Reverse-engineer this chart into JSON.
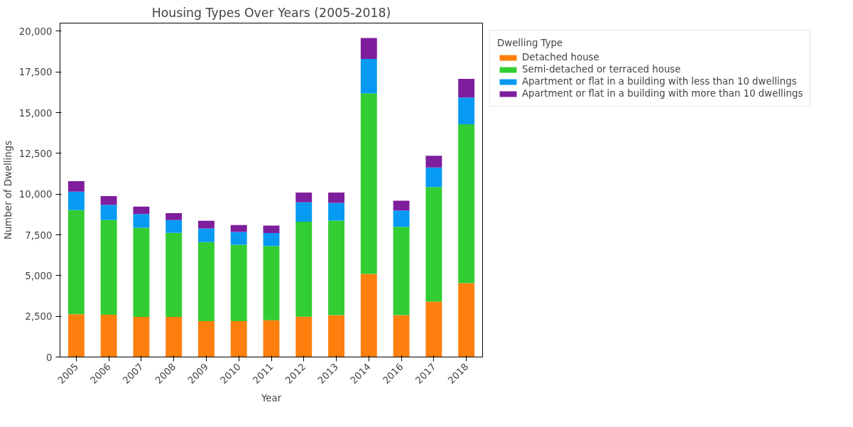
{
  "chart_data": {
    "type": "bar",
    "title": "Housing Types Over Years (2005-2018)",
    "xlabel": "Year",
    "ylabel": "Number of Dwellings",
    "legend_title": "Dwelling Type",
    "categories": [
      "2005",
      "2006",
      "2007",
      "2008",
      "2009",
      "2010",
      "2011",
      "2012",
      "2013",
      "2014",
      "2016",
      "2017",
      "2018"
    ],
    "stacked": true,
    "series": [
      {
        "name": "Detached house",
        "color": "#ff7f0e",
        "values": [
          2630,
          2590,
          2460,
          2460,
          2200,
          2200,
          2260,
          2480,
          2570,
          5100,
          2570,
          3400,
          4540
        ]
      },
      {
        "name": "Semi-detached or terraced house",
        "color": "#32cd32",
        "values": [
          6390,
          5820,
          5480,
          5160,
          4860,
          4690,
          4560,
          5830,
          5800,
          11080,
          5420,
          7040,
          9740
        ]
      },
      {
        "name": "Apartment or flat in a building with less than 10 dwellings",
        "color": "#069af3",
        "values": [
          1130,
          940,
          840,
          790,
          840,
          790,
          790,
          1190,
          1090,
          2120,
          1010,
          1190,
          1650
        ]
      },
      {
        "name": "Apartment or flat in a building with more than 10 dwellings",
        "color": "#7e1e9c",
        "values": [
          650,
          530,
          460,
          420,
          460,
          420,
          460,
          600,
          640,
          1280,
          600,
          720,
          1150
        ]
      }
    ],
    "ylim": [
      0,
      20500
    ],
    "yticks": [
      {
        "value": 0,
        "label": "0"
      },
      {
        "value": 2500,
        "label": "2,500"
      },
      {
        "value": 5000,
        "label": "5,000"
      },
      {
        "value": 7500,
        "label": "7,500"
      },
      {
        "value": 10000,
        "label": "10,000"
      },
      {
        "value": 12500,
        "label": "12,500"
      },
      {
        "value": 15000,
        "label": "15,000"
      },
      {
        "value": 17500,
        "label": "17,500"
      },
      {
        "value": 20000,
        "label": "20,000"
      }
    ],
    "grid": false,
    "legend": "top right"
  }
}
